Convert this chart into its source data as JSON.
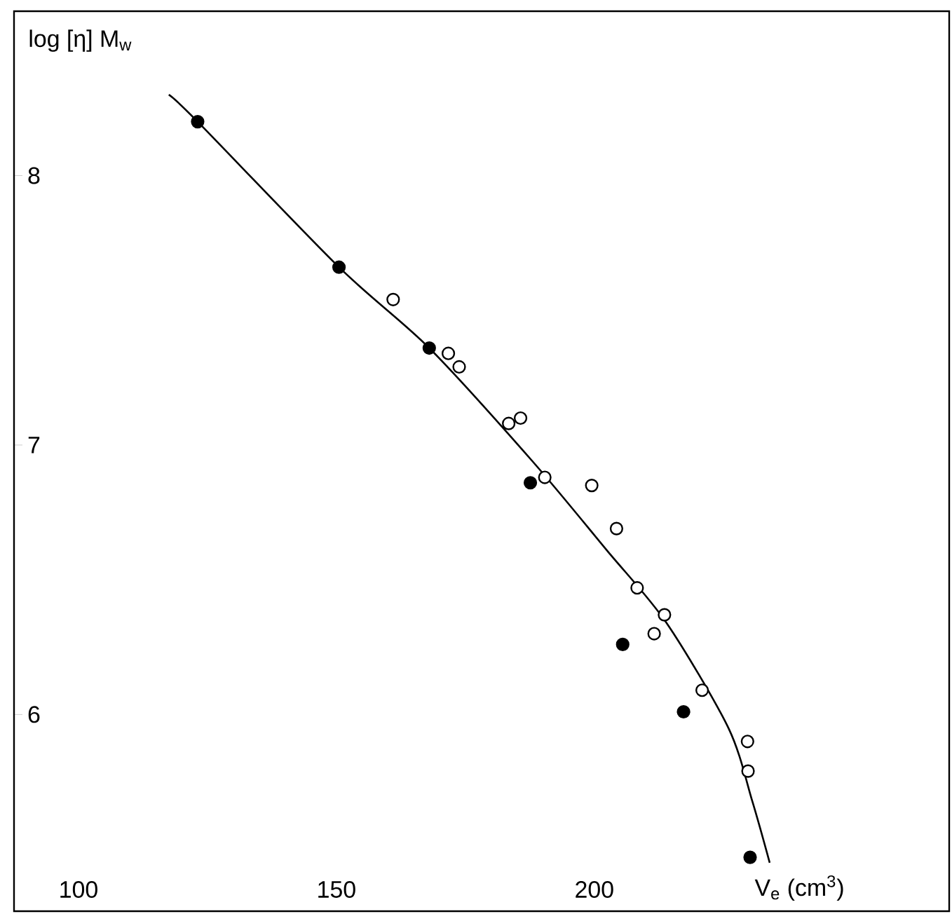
{
  "chart_data": {
    "type": "scatter",
    "xlabel": "V$_{e}$ (cm$^{3}$)",
    "ylabel": "log [η] M$_{w}$",
    "xlim": [
      87.5,
      268.8
    ],
    "ylim": [
      5.27,
      8.61
    ],
    "xticks": [
      100,
      150,
      200
    ],
    "yticks": [
      6,
      7,
      8
    ],
    "series": [
      {
        "type": "line",
        "marker": "none",
        "color": "#000000",
        "x": [
          117.5,
          123.1,
          150.5,
          168,
          188,
          202.4,
          214,
          226,
          230.6,
          234
        ],
        "values": [
          8.3,
          8.2,
          7.66,
          7.36,
          6.94,
          6.61,
          6.34,
          5.95,
          5.68,
          5.45
        ]
      },
      {
        "marker": "circle",
        "color": "#000000",
        "x": [
          123.1,
          150.5,
          168,
          187.6,
          205.5,
          217.3,
          230.2
        ],
        "values": [
          8.2,
          7.66,
          7.36,
          6.86,
          6.26,
          6.01,
          5.47
        ]
      },
      {
        "marker": "circle",
        "color": "#ffffff",
        "x": [
          161,
          171.7,
          173.8,
          183.4,
          185.7,
          190.4,
          199.5,
          204.3,
          208.3,
          211.6,
          213.6,
          220.9,
          229.7,
          229.8
        ],
        "values": [
          7.54,
          7.34,
          7.29,
          7.08,
          7.1,
          6.88,
          6.85,
          6.69,
          6.47,
          6.3,
          6.37,
          6.09,
          5.9,
          5.79
        ]
      }
    ]
  }
}
